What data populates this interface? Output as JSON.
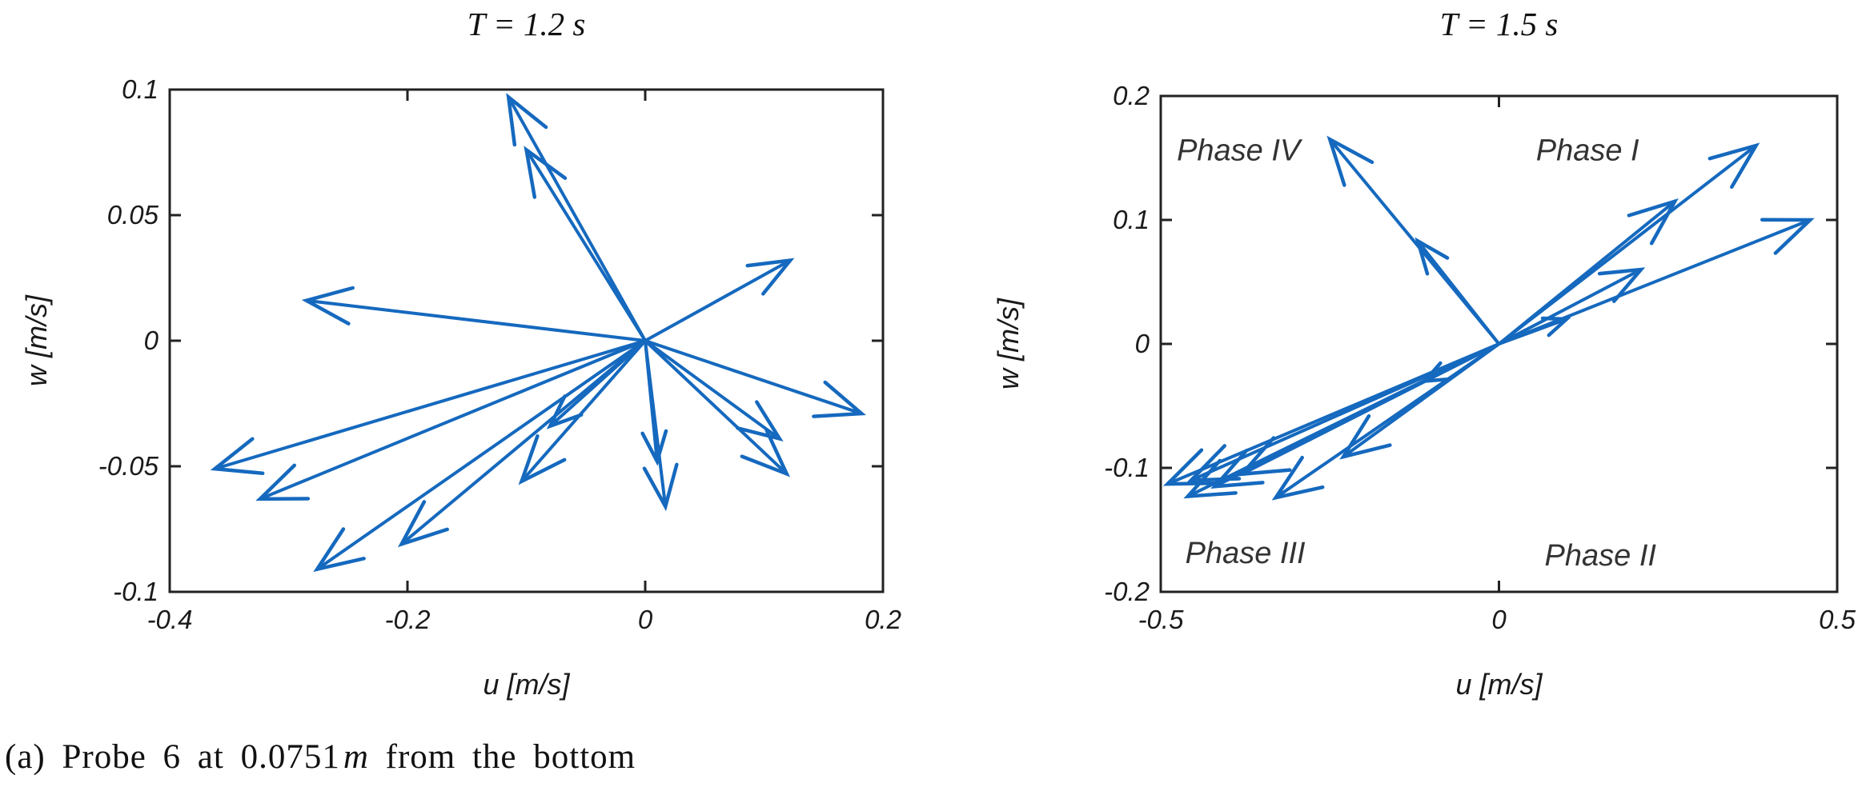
{
  "colors": {
    "arrow": "#1569be",
    "axis": "#222222",
    "tick_label": "#1a1a1a",
    "title": "#111111",
    "phase_label": "#333333"
  },
  "caption": {
    "prefix": "(a) Probe 6 at 0.0751",
    "unit": "m",
    "suffix": " from the bottom"
  },
  "chart_data": [
    {
      "type": "quiver",
      "title": "T = 1.2 s",
      "xlabel": "u [m/s]",
      "ylabel": "w [m/s]",
      "xlim": [
        -0.4,
        0.2
      ],
      "ylim": [
        -0.1,
        0.1
      ],
      "grid": false,
      "legend": null,
      "xticks": [
        {
          "label": "-0.4",
          "value": -0.4
        },
        {
          "label": "-0.2",
          "value": -0.2
        },
        {
          "label": "0",
          "value": 0
        },
        {
          "label": "0.2",
          "value": 0.2
        }
      ],
      "yticks": [
        {
          "label": "0.1",
          "value": 0.1
        },
        {
          "label": "0.05",
          "value": 0.05
        },
        {
          "label": "0",
          "value": 0
        },
        {
          "label": "-0.05",
          "value": -0.05
        },
        {
          "label": "-0.1",
          "value": -0.1
        }
      ],
      "vectors_origin": [
        0,
        0
      ],
      "vectors_uw": [
        [
          -0.115,
          0.097
        ],
        [
          -0.1,
          0.076
        ],
        [
          0.122,
          0.032
        ],
        [
          -0.285,
          0.016
        ],
        [
          -0.362,
          -0.051
        ],
        [
          -0.324,
          -0.063
        ],
        [
          -0.276,
          -0.091
        ],
        [
          -0.205,
          -0.081
        ],
        [
          -0.104,
          -0.056
        ],
        [
          -0.08,
          -0.034
        ],
        [
          0.01,
          -0.048
        ],
        [
          0.017,
          -0.066
        ],
        [
          0.182,
          -0.029
        ],
        [
          0.113,
          -0.039
        ],
        [
          0.119,
          -0.053
        ]
      ],
      "quadrant_labels": []
    },
    {
      "type": "quiver",
      "title": "T = 1.5 s",
      "xlabel": "u [m/s]",
      "ylabel": "w [m/s]",
      "xlim": [
        -0.5,
        0.5
      ],
      "ylim": [
        -0.2,
        0.2
      ],
      "grid": false,
      "legend": null,
      "xticks": [
        {
          "label": "-0.5",
          "value": -0.5
        },
        {
          "label": "0",
          "value": 0
        },
        {
          "label": "0.5",
          "value": 0.5
        }
      ],
      "yticks": [
        {
          "label": "0.2",
          "value": 0.2
        },
        {
          "label": "0.1",
          "value": 0.1
        },
        {
          "label": "0",
          "value": 0
        },
        {
          "label": "-0.1",
          "value": -0.1
        },
        {
          "label": "-0.2",
          "value": -0.2
        }
      ],
      "vectors_origin": [
        0,
        0
      ],
      "vectors_uw": [
        [
          -0.25,
          0.165
        ],
        [
          -0.12,
          0.083
        ],
        [
          0.38,
          0.16
        ],
        [
          0.26,
          0.115
        ],
        [
          0.21,
          0.06
        ],
        [
          0.1,
          0.02
        ],
        [
          0.46,
          0.1
        ],
        [
          -0.49,
          -0.113
        ],
        [
          -0.455,
          -0.11
        ],
        [
          -0.42,
          -0.115
        ],
        [
          -0.46,
          -0.123
        ],
        [
          -0.38,
          -0.105
        ],
        [
          -0.33,
          -0.124
        ],
        [
          -0.23,
          -0.091
        ],
        [
          -0.11,
          -0.03
        ]
      ],
      "quadrant_labels": [
        {
          "label": "Phase IV",
          "u": -0.385,
          "w": 0.157
        },
        {
          "label": "Phase I",
          "u": 0.131,
          "w": 0.157
        },
        {
          "label": "Phase III",
          "u": -0.375,
          "w": -0.168
        },
        {
          "label": "Phase II",
          "u": 0.15,
          "w": -0.17
        }
      ]
    }
  ]
}
